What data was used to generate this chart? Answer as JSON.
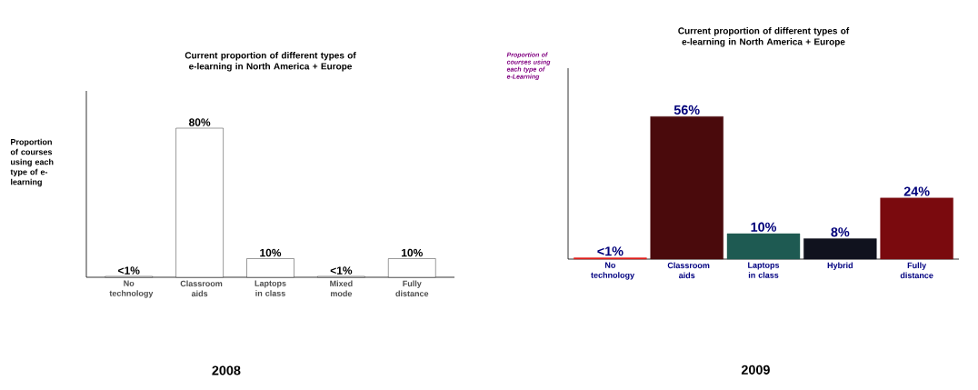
{
  "chart_data": [
    {
      "type": "bar",
      "title": "Current proportion of different types of e-learning in North America + Europe",
      "ylabel": "Proportion of courses using each type of e-learning",
      "categories": [
        "No technology",
        "Classroom aids",
        "Laptops in class",
        "Mixed mode",
        "Fully distance"
      ],
      "values": [
        0.5,
        80,
        10,
        0.5,
        10
      ],
      "value_labels": [
        "<1%",
        "80%",
        "10%",
        "<1%",
        "10%"
      ],
      "colors": [
        "#ffffff",
        "#ffffff",
        "#ffffff",
        "#ffffff",
        "#ffffff"
      ],
      "ylim": [
        0,
        100
      ],
      "annotations": [
        "2008"
      ]
    },
    {
      "type": "bar",
      "title": "Current proportion of different types of e-learning in North America + Europe",
      "ylabel": "Proportion of courses using each type of e-Learning",
      "categories": [
        "No technology",
        "Classroom aids",
        "Laptops in class",
        "Hybrid",
        "Fully distance"
      ],
      "values": [
        0.5,
        56,
        10,
        8,
        24
      ],
      "value_labels": [
        "<1%",
        "56%",
        "10%",
        "8%",
        "24%"
      ],
      "colors": [
        "#e0201c",
        "#4a0a0c",
        "#1e5a52",
        "#10121e",
        "#7a0a0e"
      ],
      "ylim": [
        0,
        75
      ],
      "annotations": [
        "2009"
      ]
    }
  ]
}
